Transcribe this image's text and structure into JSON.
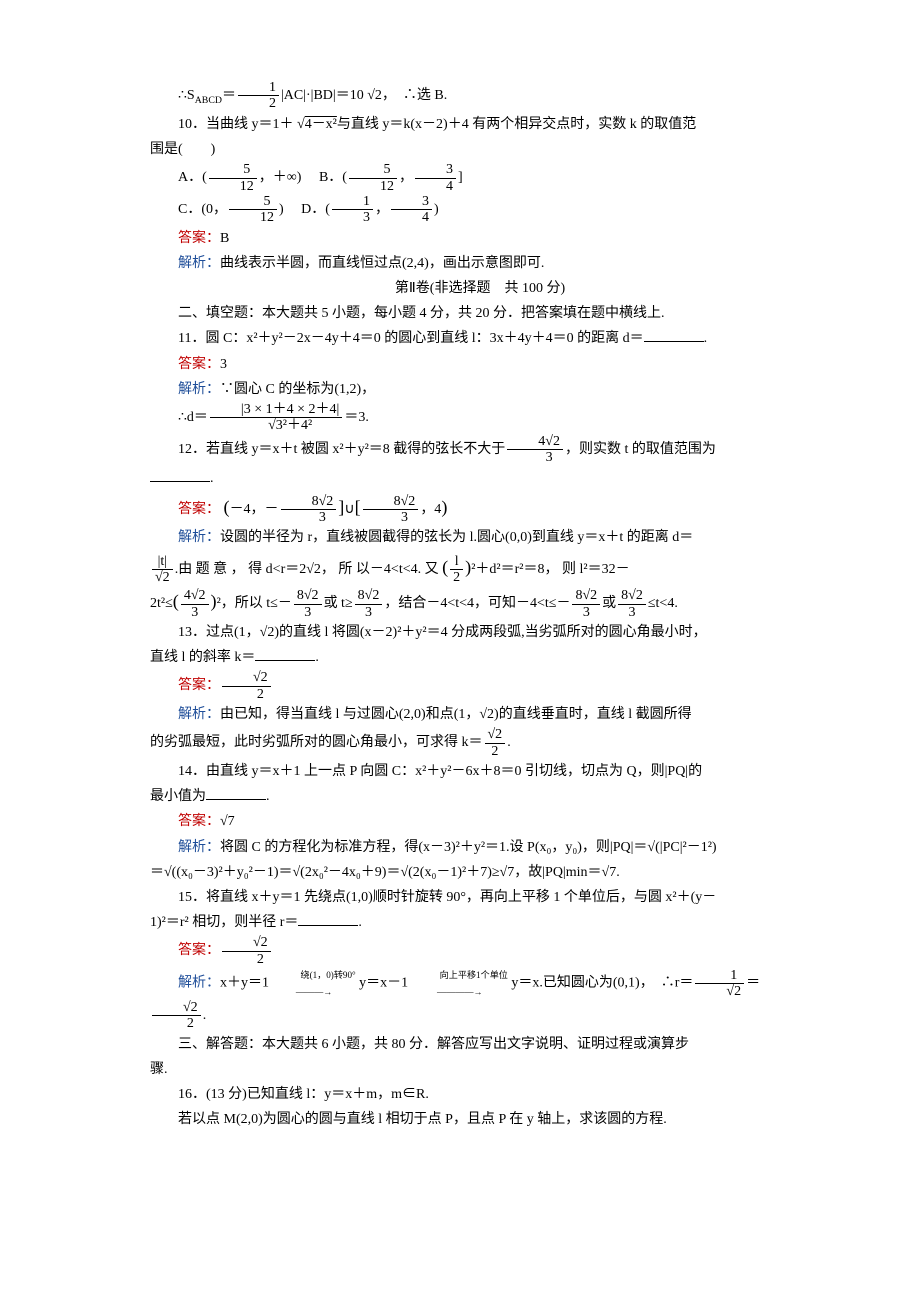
{
  "page": {
    "background_color": "#ffffff",
    "text_color": "#000000",
    "answer_color": "#c00000",
    "analysis_color": "#1f4e99",
    "font_family": "SimSun",
    "base_fontsize_pt": 10.5,
    "line_height": 1.8
  },
  "top": {
    "s_eq": "∴S",
    "sub_abcd": "ABCD",
    "eq_rest": "＝",
    "half_num": "1",
    "half_den": "2",
    "ac_bd": "|AC|·|BD|＝10",
    "root2": "√2",
    "concl": "，　∴选 B."
  },
  "q10": {
    "stem_1": "10．当曲线 y＝1＋",
    "rad": "4－x²",
    "stem_2": "与直线 y＝k(x－2)＋4 有两个相异交点时，实数 k 的取值范",
    "stem_3": "围是(　　)",
    "optA_label": "A．(",
    "optA_num": "5",
    "optA_den": "12",
    "optA_tail": "，＋∞)",
    "optB_label": "B．(",
    "optB_num": "5",
    "optB_den": "12",
    "optB_sep": "，",
    "optB_num2": "3",
    "optB_den2": "4",
    "optB_tail": "]",
    "optC_label": "C．(0，",
    "optC_num": "5",
    "optC_den": "12",
    "optC_tail": ")",
    "optD_label": "D．(",
    "optD_num": "1",
    "optD_den": "3",
    "optD_sep": "，",
    "optD_num2": "3",
    "optD_den2": "4",
    "optD_tail": ")",
    "ans_label": "答案：",
    "ans": "B",
    "ana_label": "解析：",
    "ana": "曲线表示半圆，而直线恒过点(2,4)，画出示意图即可."
  },
  "part2": {
    "title": "第Ⅱ卷(非选择题　共 100 分)"
  },
  "sec2": {
    "heading": "二、填空题：本大题共 5 小题，每小题 4 分，共 20 分．把答案填在题中横线上."
  },
  "q11": {
    "stem": "11．圆 C：x²＋y²－2x－4y＋4＝0 的圆心到直线 l：3x＋4y＋4＝0 的距离 d＝",
    "period": ".",
    "ans_label": "答案：",
    "ans": "3",
    "ana_label": "解析：",
    "ana_line1": "∵圆心 C 的坐标为(1,2)，",
    "ana_d": "∴d＝",
    "num": "|3 × 1＋4 × 2＋4|",
    "den_rad": "3²＋4²",
    "eq3": "＝3."
  },
  "q12": {
    "stem_1": "12．若直线 y＝x＋t 被圆 x²＋y²＝8 截得的弦长不大于",
    "frac_num": "4√2",
    "frac_den": "3",
    "stem_2": "，则实数 t 的取值范围为",
    "period": ".",
    "ans_label": "答案：",
    "ans_l_open": "(",
    "ans_l1": "－4，－",
    "ans_f1_num": "8√2",
    "ans_f1_den": "3",
    "ans_l_close": "]",
    "ans_union": "∪",
    "ans_r_open": "[",
    "ans_f2_num": "8√2",
    "ans_f2_den": "3",
    "ans_r2": "，4",
    "ans_r_close": ")",
    "ana_label": "解析：",
    "ana_1": "设圆的半径为 r，直线被圆截得的弦长为 l.圆心(0,0)到直线 y＝x＋t 的距离 d＝",
    "ana_dist_num": "|t|",
    "ana_dist_den": "√2",
    "ana_2a": ".由 题 意 ， 得 d<r＝2√2， 所 以－4<t<4. 又",
    "ana_half_num": "l",
    "ana_half_den": "2",
    "ana_2b": "²＋d²＝r²＝8， 则 l²＝32－",
    "ana_3a": "2t²≤",
    "ana_f_num": "4√2",
    "ana_f_den": "3",
    "ana_3b": "²，所以 t≤－",
    "ana_g_num": "8√2",
    "ana_g_den": "3",
    "ana_3c": "或 t≥",
    "ana_3d": "，结合－4<t<4，可知－4<t≤－",
    "ana_3e": "或",
    "ana_3f": "≤t<4."
  },
  "q13": {
    "stem_1": "13．过点(1，√2)的直线 l 将圆(x－2)²＋y²＝4 分成两段弧,当劣弧所对的圆心角最小时，",
    "stem_2": "直线 l 的斜率 k＝",
    "period": ".",
    "ans_label": "答案：",
    "ans_num": "√2",
    "ans_den": "2",
    "ana_label": "解析：",
    "ana_1": "由已知，得当直线 l 与过圆心(2,0)和点(1，√2)的直线垂直时，直线 l 截圆所得",
    "ana_2": "的劣弧最短，此时劣弧所对的圆心角最小，可求得 k＝",
    "ana_num": "√2",
    "ana_den": "2",
    "ana_tail": "."
  },
  "q14": {
    "stem_1": "14．由直线 y＝x＋1 上一点 P 向圆 C：x²＋y²－6x＋8＝0 引切线，切点为 Q，则|PQ|的",
    "stem_2": "最小值为",
    "period": ".",
    "ans_label": "答案：",
    "ans": "√7",
    "ana_label": "解析：",
    "ana_1": "将圆 C 的方程化为标准方程，得(x－3)²＋y²＝1.设 P(x₀，y₀)，则|PQ|＝√(|PC|²－1²)",
    "ana_2": "＝√((x₀－3)²＋y₀²－1)＝√(2x₀²－4x₀＋9)＝√(2(x₀－1)²＋7)≥√7，故|PQ|min＝√7."
  },
  "q15": {
    "stem_1": "15．将直线 x＋y＝1 先绕点(1,0)顺时针旋转 90°，再向上平移 1 个单位后，与圆 x²＋(y－",
    "stem_2": "1)²＝r² 相切，则半径 r＝",
    "period": ".",
    "ans_label": "答案：",
    "ans_num": "√2",
    "ans_den": "2",
    "ana_label": "解析：",
    "ana_1a": "x＋y＝1",
    "ana_arrow1_top": "绕(1，0)转90°",
    "ana_1b": "y＝x－1",
    "ana_arrow2_top": "向上平移1个单位",
    "ana_1c": "y＝x.已知圆心为(0,1)，　∴r＝",
    "ana_r1_num": "1",
    "ana_r1_den": "√2",
    "ana_eq": "＝",
    "ana_r2_num": "√2",
    "ana_r2_den": "2",
    "ana_tail": "."
  },
  "sec3": {
    "heading": "三、解答题：本大题共 6 小题，共 80 分．解答应写出文字说明、证明过程或演算步",
    "heading2": "骤."
  },
  "q16": {
    "stem_1": "16．(13 分)已知直线 l：y＝x＋m，m∈R.",
    "stem_2": "若以点 M(2,0)为圆心的圆与直线 l 相切于点 P，且点 P 在 y 轴上，求该圆的方程."
  }
}
